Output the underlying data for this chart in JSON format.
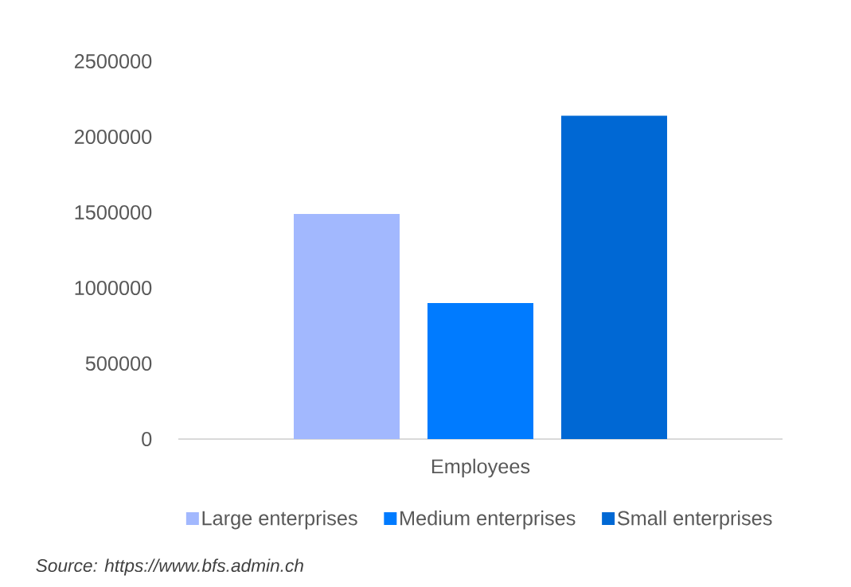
{
  "chart_data": {
    "type": "bar",
    "categories": [
      "Employees"
    ],
    "series": [
      {
        "name": "Large enterprises",
        "color": "#a2b8fe",
        "values": [
          1490000
        ]
      },
      {
        "name": "Medium enterprises",
        "color": "#007bff",
        "values": [
          900000
        ]
      },
      {
        "name": "Small enterprises",
        "color": "#0068d4",
        "values": [
          2140000
        ]
      }
    ],
    "ylim": [
      0,
      2500000
    ],
    "yticks": [
      0,
      500000,
      1000000,
      1500000,
      2000000,
      2500000
    ],
    "legend": "bottom",
    "annotations": [
      "Source: https://www.bfs.admin.ch"
    ]
  }
}
